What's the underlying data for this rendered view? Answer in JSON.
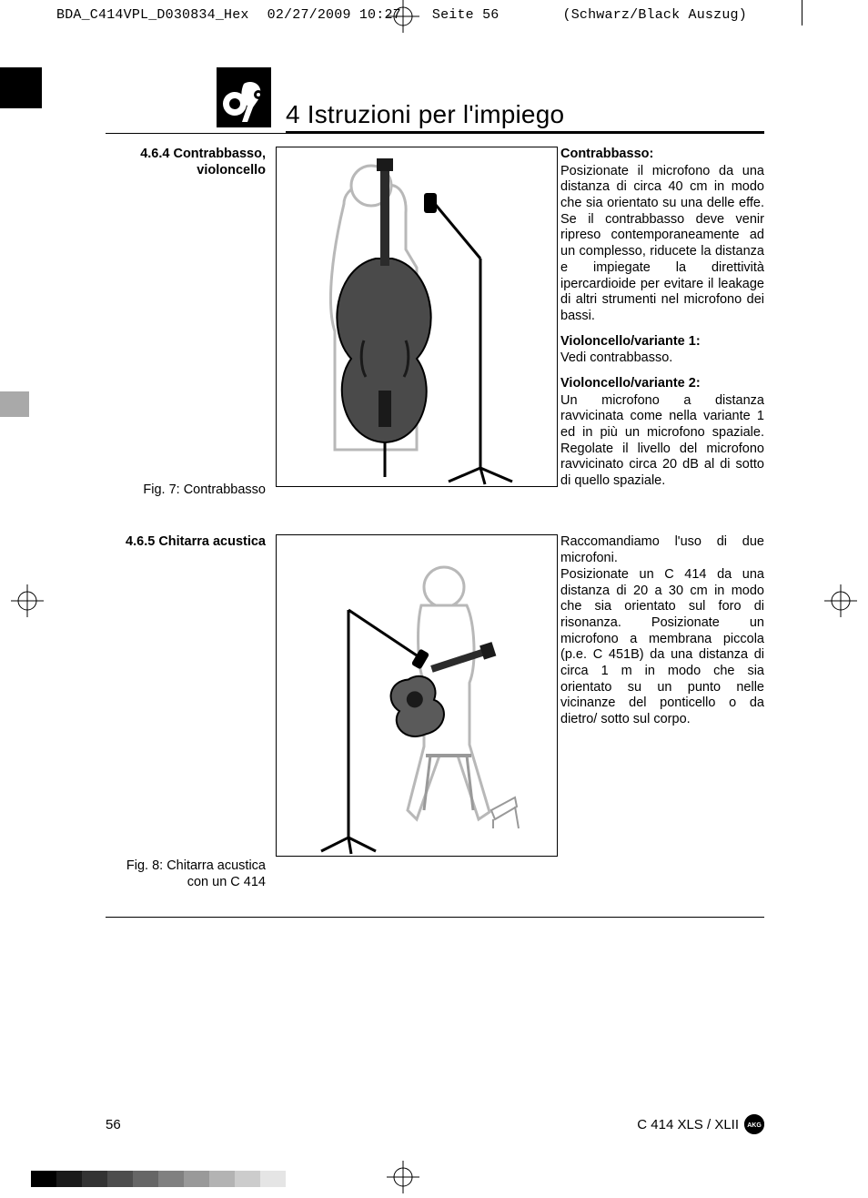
{
  "crop": {
    "filename": "BDA_C414VPL_D030834_Hex",
    "datetime": "02/27/2009  10:27",
    "page_label": "Seite 56",
    "color": "(Schwarz/Black Auszug)"
  },
  "chapter_title": "4 Istruzioni per l'impiego",
  "section1": {
    "heading_line1": "4.6.4 Contrabbasso,",
    "heading_line2": "violoncello",
    "caption": "Fig. 7: Contrabbasso",
    "sub1_title": "Contrabbasso:",
    "sub1_body": "Posizionate il microfono da una distanza di circa 40 cm in modo che sia orientato su una delle effe. Se il contrabbasso deve venir ripreso contemporaneamente ad un complesso, riducete la distanza e impiegate la direttività ipercardioide per evitare il leakage di altri strumenti nel microfono dei bassi.",
    "sub2_title": "Violoncello/variante 1:",
    "sub2_body": "Vedi contrabbasso.",
    "sub3_title": "Violoncello/variante 2:",
    "sub3_body": "Un microfono a distanza ravvicinata come nella variante 1 ed in più un microfono spaziale. Regolate il livello del microfono ravvicinato circa 20 dB al di sotto di quello spaziale."
  },
  "section2": {
    "heading": "4.6.5 Chitarra acustica",
    "caption_line1": "Fig. 8: Chitarra acustica",
    "caption_line2": "con un C 414",
    "body": "Raccomandiamo l'uso di due microfoni.\nPosizionate un C 414 da una distanza di 20 a 30 cm in modo che sia orientato sul foro di risonanza. Posizionate un microfono a membrana piccola (p.e. C 451B) da una distanza di circa 1 m in modo che sia orientato su un punto nelle vicinanze del ponticello o da dietro/ sotto sul corpo."
  },
  "footer": {
    "page": "56",
    "model": "C 414 XLS / XLII"
  },
  "gray_ramp": [
    "#000000",
    "#1a1a1a",
    "#333333",
    "#4d4d4d",
    "#666666",
    "#808080",
    "#999999",
    "#b3b3b3",
    "#cccccc",
    "#e5e5e5",
    "#ffffff"
  ]
}
